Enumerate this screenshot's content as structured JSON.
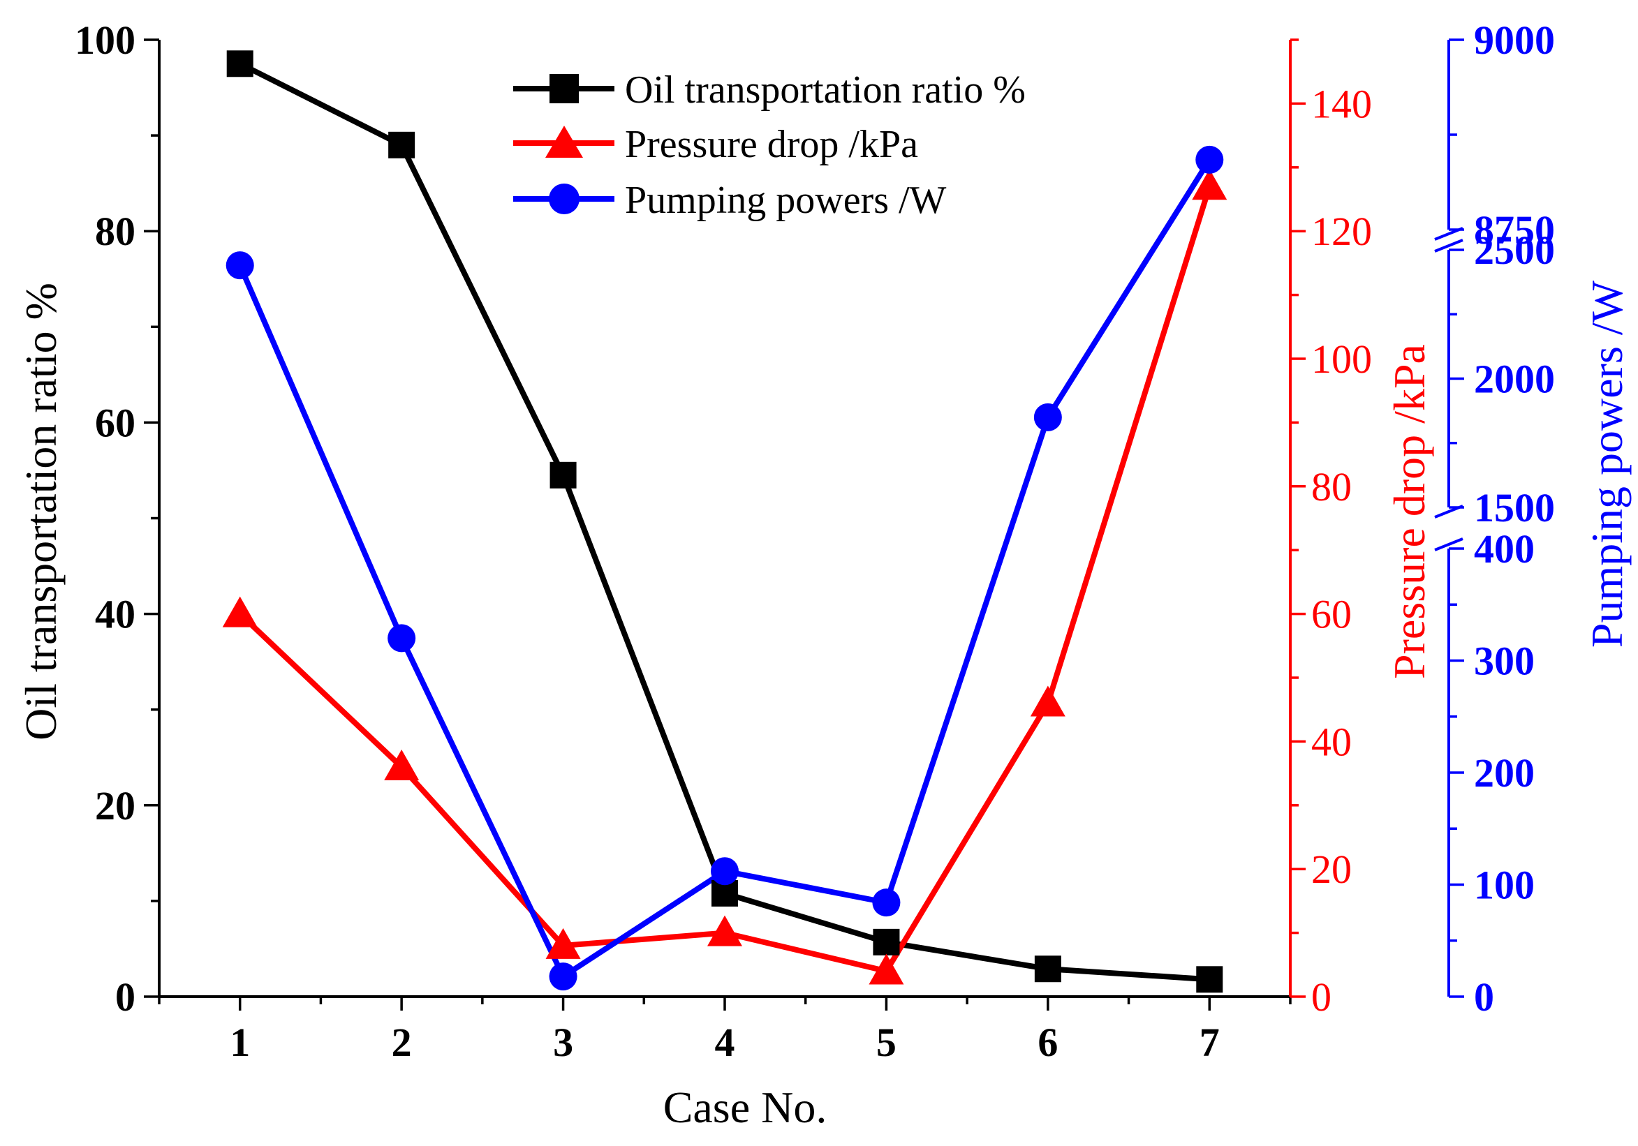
{
  "chart_data": {
    "type": "line",
    "xlabel": "Case No.",
    "x": [
      1,
      2,
      3,
      4,
      5,
      6,
      7
    ],
    "xlim": [
      0.5,
      7.5
    ],
    "grid": false,
    "legend_position": "top-center",
    "series": [
      {
        "name": "Oil transportation ratio %",
        "axis": "left",
        "marker": "square",
        "color": "#000000",
        "values": [
          97.5,
          89,
          54.5,
          10.8,
          5.7,
          2.9,
          1.8
        ]
      },
      {
        "name": "Pressure drop /kPa",
        "axis": "right1",
        "marker": "triangle",
        "color": "#ff0000",
        "values": [
          60,
          36,
          8,
          10,
          4,
          46,
          127
        ]
      },
      {
        "name": "Pumping powers /W",
        "axis": "right2",
        "marker": "circle",
        "color": "#0000ff",
        "values": [
          2440,
          320,
          18,
          112,
          84,
          1850,
          8842
        ]
      }
    ],
    "axes": {
      "left": {
        "label": "Oil transportation ratio %",
        "color": "#000000",
        "ylim": [
          0,
          100
        ],
        "ticks": [
          0,
          20,
          40,
          60,
          80,
          100
        ],
        "tick_labels": [
          "0",
          "20",
          "40",
          "60",
          "80",
          "100"
        ]
      },
      "right1": {
        "label": "Pressure drop /kPa",
        "color": "#ff0000",
        "ylim": [
          0,
          150
        ],
        "ticks": [
          0,
          20,
          40,
          60,
          80,
          100,
          120,
          140
        ],
        "tick_labels": [
          "0",
          "20",
          "40",
          "60",
          "80",
          "100",
          "120",
          "140"
        ]
      },
      "right2": {
        "label": "Pumping powers /W",
        "color": "#0000ff",
        "broken": true,
        "segments": [
          {
            "range": [
              0,
              400
            ],
            "ticks": [
              0,
              100,
              200,
              300,
              400
            ],
            "tick_labels": [
              "0",
              "100",
              "200",
              "300",
              "400"
            ]
          },
          {
            "range": [
              1500,
              2500
            ],
            "ticks": [
              1500,
              2000,
              2500
            ],
            "tick_labels": [
              "1500",
              "2000",
              "2500"
            ]
          },
          {
            "range": [
              8750,
              9000
            ],
            "ticks": [
              8750,
              9000
            ],
            "tick_labels": [
              "8750",
              "9000"
            ]
          }
        ]
      }
    }
  }
}
